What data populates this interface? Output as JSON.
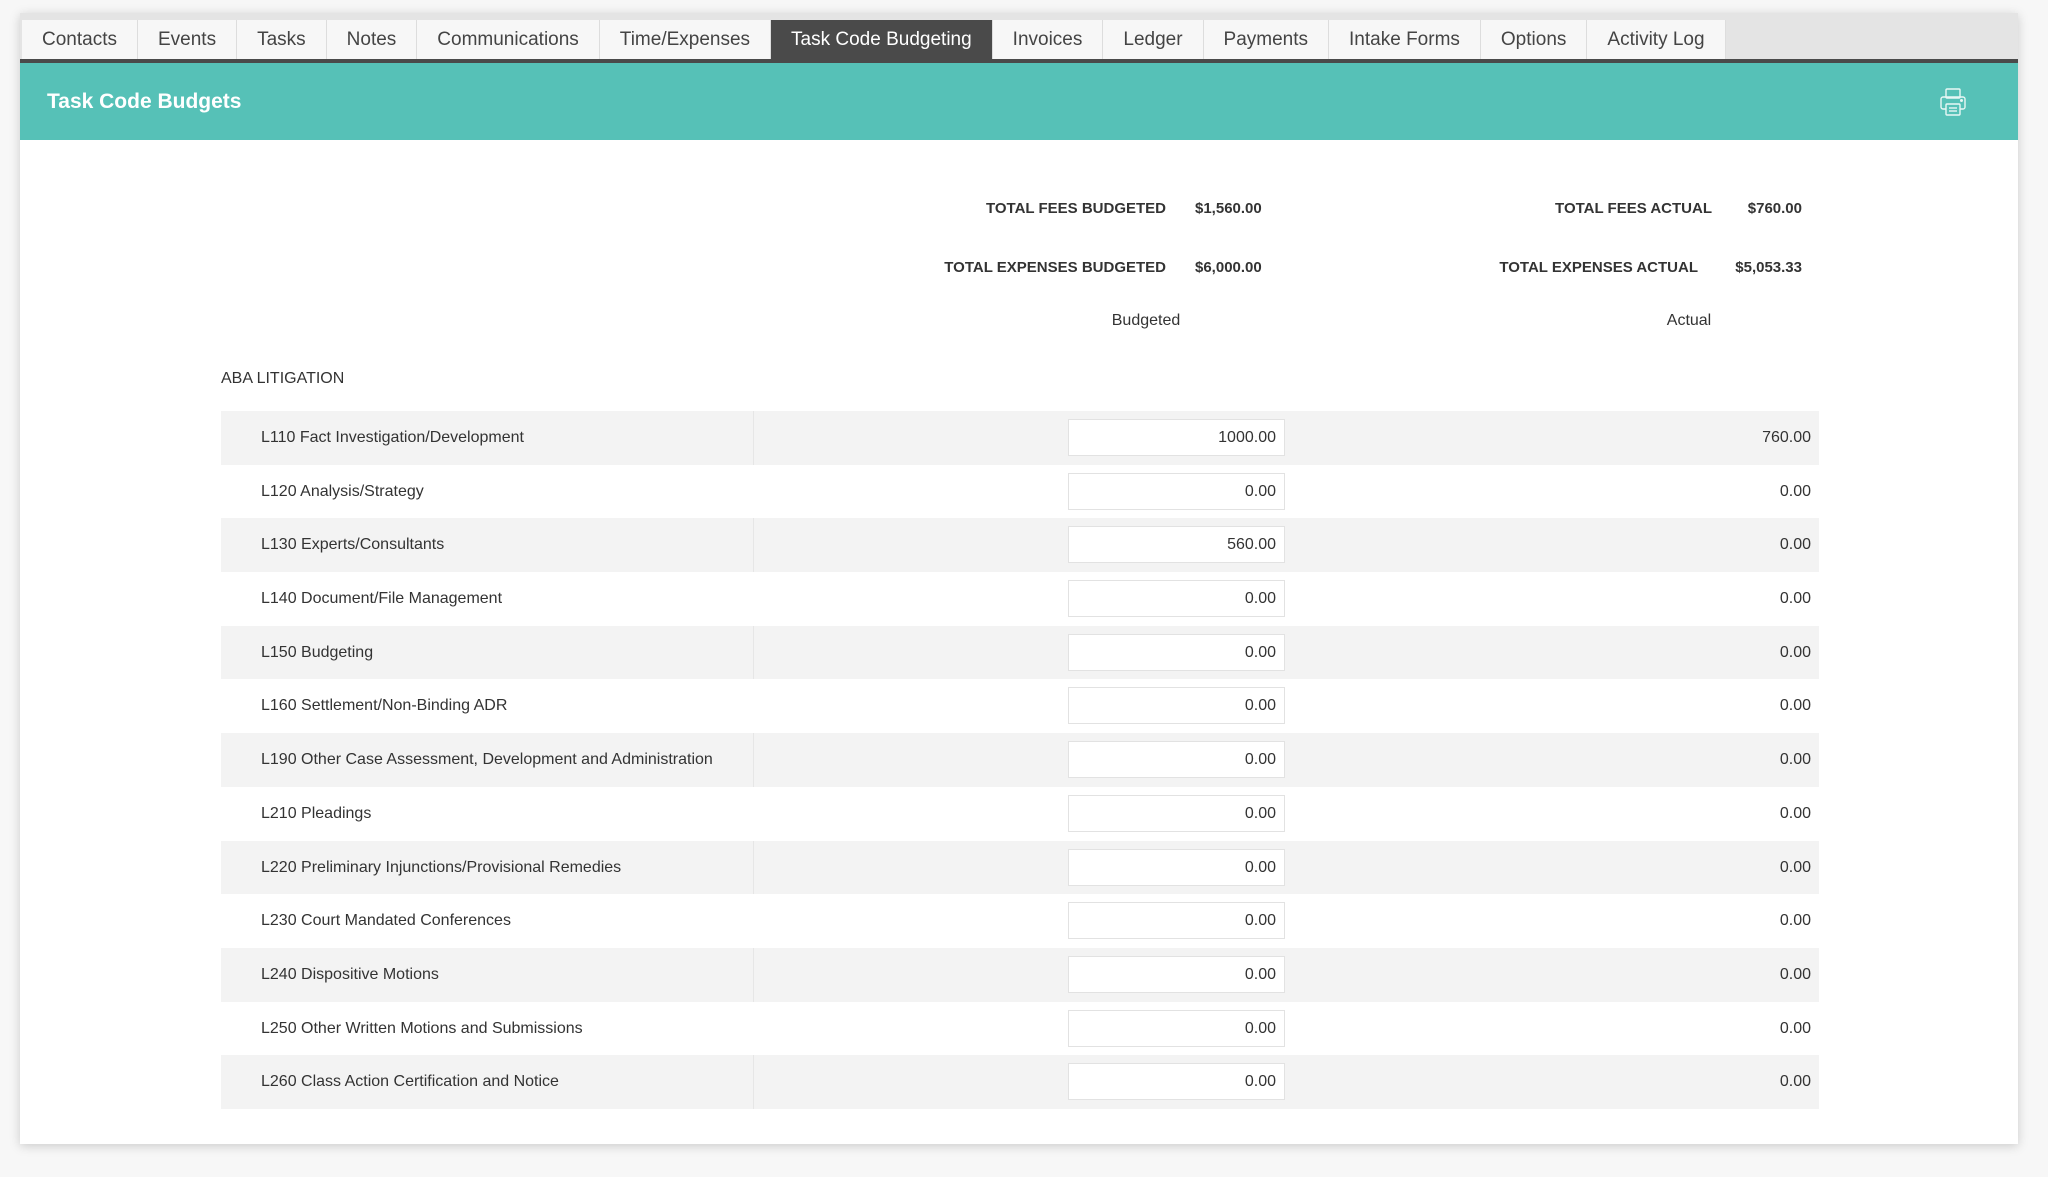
{
  "tabs": [
    {
      "label": "Contacts"
    },
    {
      "label": "Events"
    },
    {
      "label": "Tasks"
    },
    {
      "label": "Notes"
    },
    {
      "label": "Communications"
    },
    {
      "label": "Time/Expenses"
    },
    {
      "label": "Task Code Budgeting",
      "active": true
    },
    {
      "label": "Invoices"
    },
    {
      "label": "Ledger"
    },
    {
      "label": "Payments"
    },
    {
      "label": "Intake Forms"
    },
    {
      "label": "Options"
    },
    {
      "label": "Activity Log"
    }
  ],
  "header": {
    "title": "Task Code Budgets",
    "print_icon": "printer-icon"
  },
  "colors": {
    "accent": "#56c1b7",
    "active_tab": "#4a4a4a"
  },
  "totals": {
    "fees_budgeted_label": "TOTAL FEES BUDGETED",
    "fees_budgeted": "$1,560.00",
    "expenses_budgeted_label": "TOTAL EXPENSES BUDGETED",
    "expenses_budgeted": "$6,000.00",
    "fees_actual_label": "TOTAL FEES ACTUAL",
    "fees_actual": "$760.00",
    "expenses_actual_label": "TOTAL EXPENSES ACTUAL",
    "expenses_actual": "$5,053.33"
  },
  "columns": {
    "budgeted": "Budgeted",
    "actual": "Actual"
  },
  "section": {
    "title": "ABA LITIGATION"
  },
  "rows": [
    {
      "name": "L110 Fact Investigation/Development",
      "budgeted": "1000.00",
      "actual": "760.00"
    },
    {
      "name": "L120 Analysis/Strategy",
      "budgeted": "0.00",
      "actual": "0.00"
    },
    {
      "name": "L130 Experts/Consultants",
      "budgeted": "560.00",
      "actual": "0.00"
    },
    {
      "name": "L140 Document/File Management",
      "budgeted": "0.00",
      "actual": "0.00"
    },
    {
      "name": "L150 Budgeting",
      "budgeted": "0.00",
      "actual": "0.00"
    },
    {
      "name": "L160 Settlement/Non-Binding ADR",
      "budgeted": "0.00",
      "actual": "0.00"
    },
    {
      "name": "L190 Other Case Assessment, Development and Administration",
      "budgeted": "0.00",
      "actual": "0.00"
    },
    {
      "name": "L210 Pleadings",
      "budgeted": "0.00",
      "actual": "0.00"
    },
    {
      "name": "L220 Preliminary Injunctions/Provisional Remedies",
      "budgeted": "0.00",
      "actual": "0.00"
    },
    {
      "name": "L230 Court Mandated Conferences",
      "budgeted": "0.00",
      "actual": "0.00"
    },
    {
      "name": "L240 Dispositive Motions",
      "budgeted": "0.00",
      "actual": "0.00"
    },
    {
      "name": "L250 Other Written Motions and Submissions",
      "budgeted": "0.00",
      "actual": "0.00"
    },
    {
      "name": "L260 Class Action Certification and Notice",
      "budgeted": "0.00",
      "actual": "0.00"
    }
  ]
}
